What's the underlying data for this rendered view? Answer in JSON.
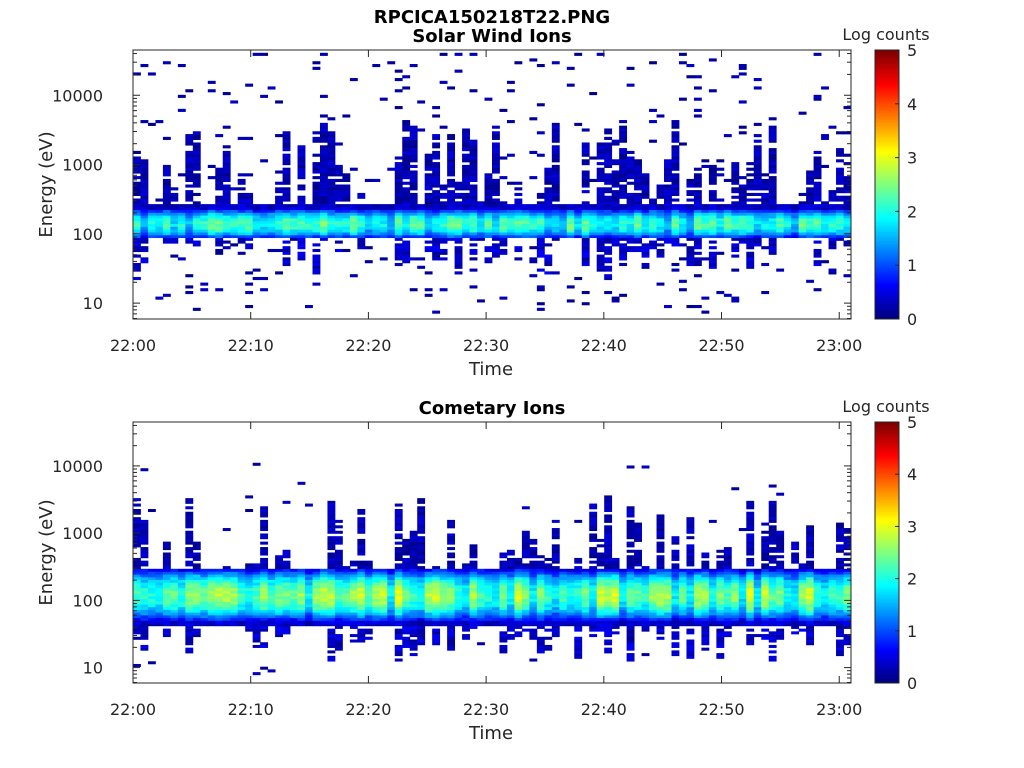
{
  "figure_title": "RPCICA150218T22.PNG",
  "chart_data": [
    {
      "type": "heatmap",
      "title": "Solar Wind Ions",
      "xlabel": "Time",
      "ylabel": "Energy (eV)",
      "x_ticks": [
        "22:00",
        "22:10",
        "22:20",
        "22:30",
        "22:40",
        "22:50",
        "23:00"
      ],
      "xlim_minutes": [
        0,
        61
      ],
      "y_scale": "log",
      "ylim": [
        5.9,
        45000
      ],
      "y_ticks": [
        10,
        100,
        1000,
        10000
      ],
      "y_tick_labels": [
        "10",
        "100",
        "1000",
        "10000"
      ],
      "colorbar": {
        "label": "Log counts",
        "min": 0,
        "max": 5,
        "ticks": [
          "0",
          "1",
          "2",
          "3",
          "4",
          "5"
        ],
        "colormap": "jet"
      },
      "profile": {
        "core_energy_eV": [
          90,
          280
        ],
        "peak_energy_eV": 140,
        "peak_log_counts": 2.0,
        "sparse_energy_eV": [
          7,
          40000
        ]
      }
    },
    {
      "type": "heatmap",
      "title": "Cometary Ions",
      "xlabel": "Time",
      "ylabel": "Energy (eV)",
      "x_ticks": [
        "22:00",
        "22:10",
        "22:20",
        "22:30",
        "22:40",
        "22:50",
        "23:00"
      ],
      "xlim_minutes": [
        0,
        61
      ],
      "y_scale": "log",
      "ylim": [
        5.9,
        45000
      ],
      "y_ticks": [
        10,
        100,
        1000,
        10000
      ],
      "y_tick_labels": [
        "10",
        "100",
        "1000",
        "10000"
      ],
      "colorbar": {
        "label": "Log counts",
        "min": 0,
        "max": 5,
        "ticks": [
          "0",
          "1",
          "2",
          "3",
          "4",
          "5"
        ],
        "colormap": "jet"
      },
      "profile": {
        "core_energy_eV": [
          40,
          300
        ],
        "peak_energy_eV": 120,
        "peak_log_counts": 2.4,
        "sparse_energy_eV": [
          8,
          15000
        ]
      }
    }
  ]
}
